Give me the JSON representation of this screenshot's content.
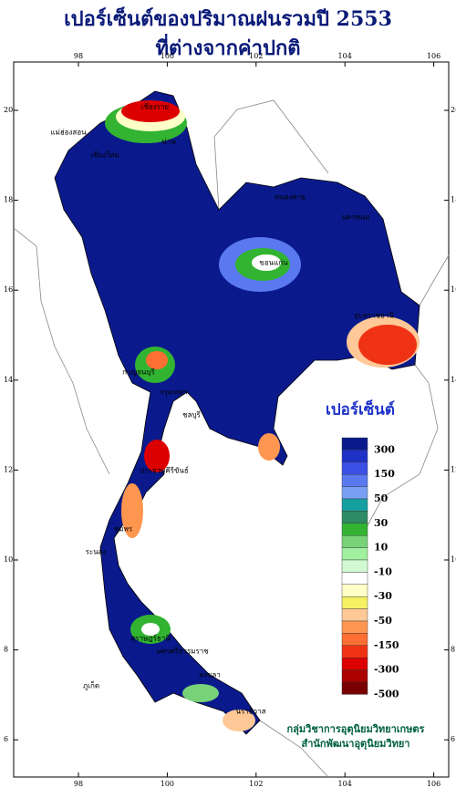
{
  "header": {
    "title_line1": "เปอร์เซ็นต์ของปริมาณฝนรวมปี 2553",
    "title_line2": "ที่ต่างจากค่าปกติ"
  },
  "map": {
    "lon_ticks": [
      98,
      100,
      102,
      104,
      106
    ],
    "lat_ticks": [
      20,
      18,
      16,
      14,
      12,
      10,
      8,
      6
    ],
    "places": [
      "เชียงราย",
      "แม่ฮ่องสอน",
      "เชียงใหม่",
      "น่าน",
      "หนองคาย",
      "นครพนม",
      "ขอนแก่น",
      "อุบลราชธานี",
      "กาญจนบุรี",
      "กรุงเทพฯ",
      "ชลบุรี",
      "ประจวบคีรีขันธ์",
      "ชุมพร",
      "ระนอง",
      "สุราษฎร์ธานี",
      "ภูเก็ต",
      "นครศรีธรรมราช",
      "สงขลา",
      "นราธิวาส"
    ]
  },
  "legend": {
    "title": "เปอร์เซ็นต์",
    "colors": [
      "#0a1a8c",
      "#1e32c8",
      "#3c50e6",
      "#5a78f0",
      "#78a0f5",
      "#14a0a0",
      "#2d8c64",
      "#32b432",
      "#78d278",
      "#a0f0a0",
      "#d2fad2",
      "#ffffff",
      "#ffffc8",
      "#f5f064",
      "#ffc896",
      "#ff9650",
      "#ff6e32",
      "#f03214",
      "#dc0000",
      "#aa0000",
      "#780000"
    ],
    "labels": [
      "300",
      "150",
      "50",
      "30",
      "10",
      "-10",
      "-30",
      "-50",
      "-150",
      "-300",
      "-500"
    ]
  },
  "credit": {
    "line1": "กลุ่มวิชาการอุตุนิยมวิทยาเกษตร",
    "line2": "สำนักพัฒนาอุตุนิยมวิทยา"
  }
}
